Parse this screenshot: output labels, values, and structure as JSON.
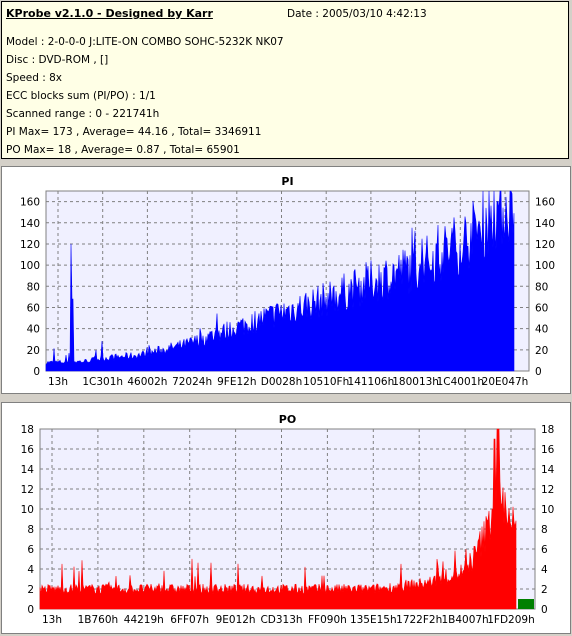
{
  "app": {
    "title": "KProbe v2.1.0 - Designed by Karr",
    "date": "Date : 2005/03/10 4:42:13"
  },
  "info_lines": [
    "Model : 2-0-0-0 J:LITE-ON COMBO SOHC-5232K NK07",
    "Disc : DVD-ROM ,  []",
    "Speed : 8x",
    "ECC blocks sum (PI/PO) : 1/1",
    "Scanned range : 0 - 221741h",
    "PI Max= 173 , Average= 44.16 , Total= 3346911",
    "PO Max= 18 , Average= 0.87 , Total= 65901"
  ],
  "colors": {
    "pi": "#0000ff",
    "po": "#ff0000",
    "po_marker": "#008000",
    "plot_bg": "#f0f0ff"
  },
  "chart_data": [
    {
      "type": "area",
      "title": "PI",
      "ylim": [
        0,
        170
      ],
      "y_ticks": [
        0,
        20,
        40,
        60,
        80,
        100,
        120,
        140,
        160
      ],
      "x_tick_labels": [
        "13h",
        "1C301h",
        "46002h",
        "72024h",
        "9FE12h",
        "D0028h",
        "10510Fh",
        "141106h",
        "180013h",
        "1C4001h",
        "20E047h"
      ],
      "grid": true,
      "profile": [
        [
          0,
          8
        ],
        [
          0.08,
          9
        ],
        [
          0.12,
          12
        ],
        [
          0.2,
          15
        ],
        [
          0.3,
          25
        ],
        [
          0.4,
          40
        ],
        [
          0.5,
          55
        ],
        [
          0.6,
          68
        ],
        [
          0.7,
          85
        ],
        [
          0.8,
          100
        ],
        [
          0.9,
          125
        ],
        [
          0.96,
          150
        ],
        [
          1.0,
          160
        ]
      ],
      "spikes": [
        [
          0.055,
          120
        ],
        [
          0.057,
          68
        ]
      ]
    },
    {
      "type": "area",
      "title": "PO",
      "ylim": [
        0,
        18
      ],
      "y_ticks": [
        0,
        2,
        4,
        6,
        8,
        10,
        12,
        14,
        16,
        18
      ],
      "x_tick_labels": [
        "13h",
        "1B760h",
        "44219h",
        "6FF07h",
        "9E012h",
        "CD313h",
        "FF090h",
        "135E15h",
        "1722F2h",
        "1B4007h",
        "1FD209h"
      ],
      "grid": true,
      "profile": [
        [
          0,
          2
        ],
        [
          0.7,
          2
        ],
        [
          0.8,
          2.5
        ],
        [
          0.85,
          3
        ],
        [
          0.9,
          4
        ],
        [
          0.94,
          8
        ],
        [
          0.96,
          12
        ],
        [
          0.98,
          10
        ],
        [
          1.0,
          8
        ]
      ],
      "spikes": [
        [
          0.962,
          18
        ],
        [
          0.955,
          17
        ]
      ]
    }
  ]
}
